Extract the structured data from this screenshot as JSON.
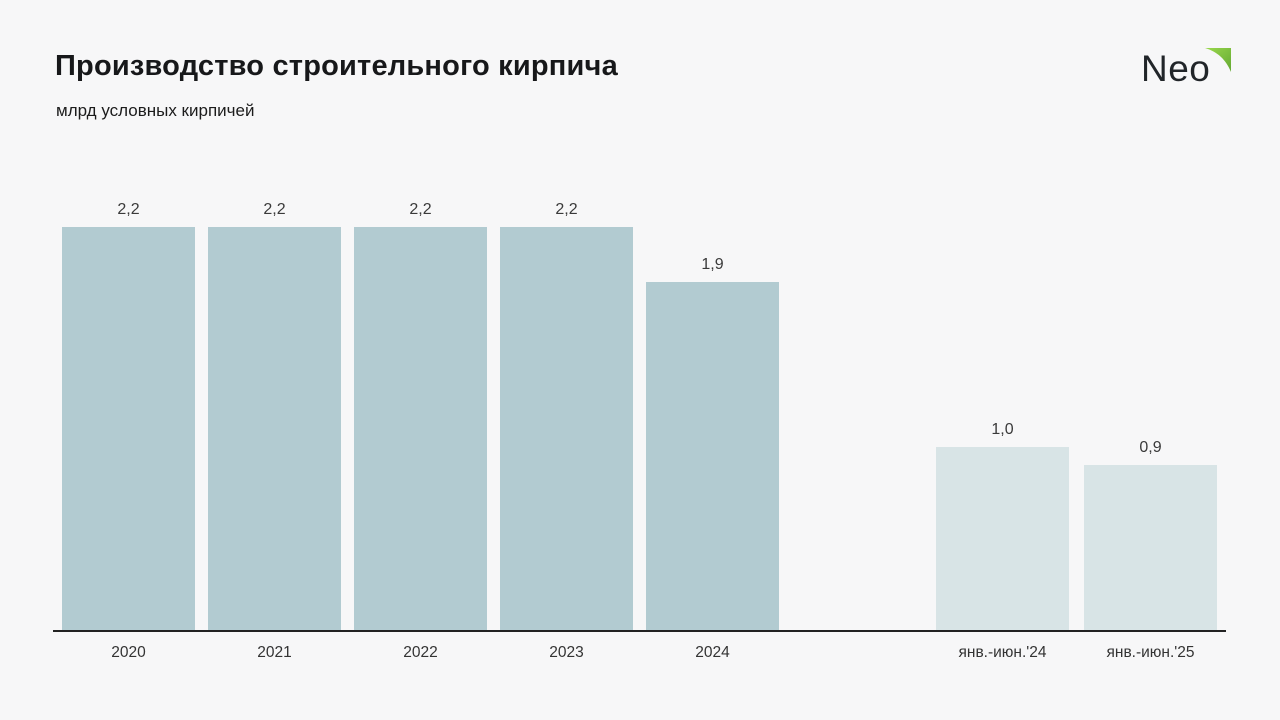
{
  "header": {
    "title": "Производство строительного кирпича",
    "subtitle": "млрд условных кирпичей"
  },
  "logo": {
    "text": "Neo",
    "text_color": "#212529",
    "accent_color_from": "#9ad84d",
    "accent_color_to": "#63a832"
  },
  "chart_data": {
    "type": "bar",
    "title": "Производство строительного кирпича",
    "ylabel": "млрд условных кирпичей",
    "xlabel": "",
    "ylim": [
      0,
      2.4
    ],
    "grid": false,
    "legend": "none",
    "categories": [
      "2020",
      "2021",
      "2022",
      "2023",
      "2024",
      "янв.-июн.'24",
      "янв.-июн.'25"
    ],
    "values": [
      2.2,
      2.2,
      2.2,
      2.2,
      1.9,
      1.0,
      0.9
    ],
    "bars": [
      {
        "label": "2020",
        "value": 2.2,
        "value_label": "2,2",
        "group": "annual"
      },
      {
        "label": "2021",
        "value": 2.2,
        "value_label": "2,2",
        "group": "annual"
      },
      {
        "label": "2022",
        "value": 2.2,
        "value_label": "2,2",
        "group": "annual"
      },
      {
        "label": "2023",
        "value": 2.2,
        "value_label": "2,2",
        "group": "annual"
      },
      {
        "label": "2024",
        "value": 1.9,
        "value_label": "1,9",
        "group": "annual"
      },
      {
        "label": "янв.-июн.'24",
        "value": 1.0,
        "value_label": "1,0",
        "group": "half_year"
      },
      {
        "label": "янв.-июн.'25",
        "value": 0.9,
        "value_label": "0,9",
        "group": "half_year"
      }
    ],
    "colors": {
      "annual": "#b2cbd1",
      "half_year": "#d8e4e6",
      "background": "#f7f7f8",
      "axis_line": "#222222",
      "value_label": "#3a3a3a",
      "tick_label": "#333333"
    }
  }
}
